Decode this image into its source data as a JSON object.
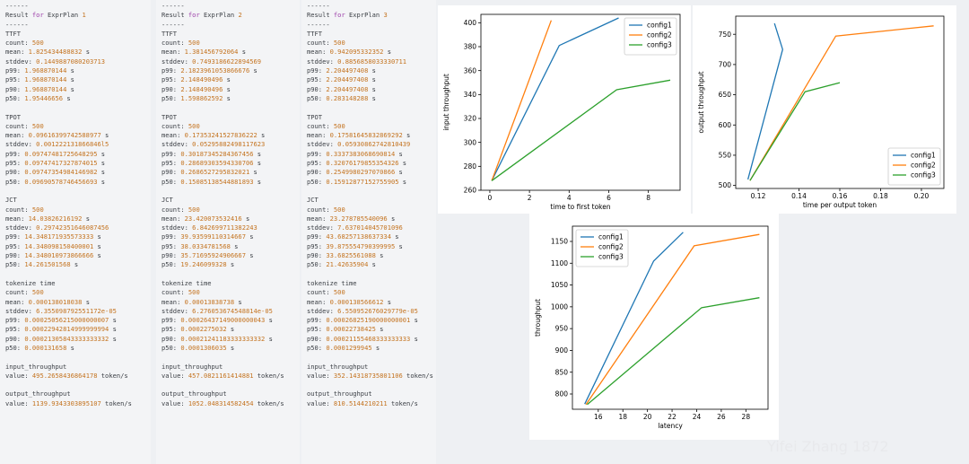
{
  "panels": [
    {
      "plan": "ExprPlan",
      "plan_num": "1",
      "lines": [
        [
          "------"
        ],
        [
          "Result ",
          {
            "k": "for"
          },
          " ExprPlan ",
          {
            "n": "1"
          }
        ],
        [
          "------"
        ],
        [
          "TTFT"
        ],
        [
          "count: ",
          {
            "n": "500"
          }
        ],
        [
          "mean: ",
          {
            "n": "1.825434488832"
          },
          " s"
        ],
        [
          "stddev: ",
          {
            "n": "0.1449887080203713"
          }
        ],
        [
          "p99: ",
          {
            "n": "1.968870144"
          },
          " s"
        ],
        [
          "p95: ",
          {
            "n": "1.968870144"
          },
          " s"
        ],
        [
          "p90: ",
          {
            "n": "1.968870144"
          },
          " s"
        ],
        [
          "p50: ",
          {
            "n": "1.95446656"
          },
          " s"
        ],
        [],
        [
          "TPOT"
        ],
        [
          "count: ",
          {
            "n": "500"
          }
        ],
        [
          "mean: ",
          {
            "n": "0.09616399742588977"
          },
          " s"
        ],
        [
          "stddev: ",
          {
            "n": "0.001222131866846l5"
          }
        ],
        [
          "p99: ",
          {
            "n": "0.09747481725648295"
          },
          " s"
        ],
        [
          "p95: ",
          {
            "n": "0.09747417327874015"
          },
          " s"
        ],
        [
          "p90: ",
          {
            "n": "0.09747354984146982"
          },
          " s"
        ],
        [
          "p50: ",
          {
            "n": "0.09690578746456693"
          },
          " s"
        ],
        [],
        [
          "JCT"
        ],
        [
          "count: ",
          {
            "n": "500"
          }
        ],
        [
          "mean: ",
          {
            "n": "14.03826216192"
          },
          " s"
        ],
        [
          "stddev: ",
          {
            "n": "0.29742351646087456"
          }
        ],
        [
          "p99: ",
          {
            "n": "14.348171935573333"
          },
          " s"
        ],
        [
          "p95: ",
          {
            "n": "14.348098150400001"
          },
          " s"
        ],
        [
          "p90: ",
          {
            "n": "14.348010973866666"
          },
          " s"
        ],
        [
          "p50: ",
          {
            "n": "14.261501568"
          },
          " s"
        ],
        [],
        [
          "tokenize time"
        ],
        [
          "count: ",
          {
            "n": "500"
          }
        ],
        [
          "mean: ",
          {
            "n": "0.000138018038"
          },
          " s"
        ],
        [
          "stddev: ",
          {
            "n": "6.355098792551172e-05"
          }
        ],
        [
          "p99: ",
          {
            "n": "0.00025056215000000007"
          },
          " s"
        ],
        [
          "p95: ",
          {
            "n": "0.00022942814999999994"
          },
          " s"
        ],
        [
          "p90: ",
          {
            "n": "0.00021305843333333332"
          },
          " s"
        ],
        [
          "p50: ",
          {
            "n": "0.000131658"
          },
          " s"
        ],
        [],
        [
          "input_throughput"
        ],
        [
          "value: ",
          {
            "n": "495.2658436864178"
          },
          " token/s"
        ],
        [],
        [
          "output_throughput"
        ],
        [
          "value: ",
          {
            "n": "1139.9343303895107"
          },
          " token/s"
        ]
      ]
    },
    {
      "lines": [
        [
          "------"
        ],
        [
          "Result ",
          {
            "k": "for"
          },
          " ExprPlan ",
          {
            "n": "2"
          }
        ],
        [
          "------"
        ],
        [
          "TTFT"
        ],
        [
          "count: ",
          {
            "n": "500"
          }
        ],
        [
          "mean: ",
          {
            "n": "1.381456792064"
          },
          " s"
        ],
        [
          "stddev: ",
          {
            "n": "0.7493186622894569"
          }
        ],
        [
          "p99: ",
          {
            "n": "2.1823961053866676"
          },
          " s"
        ],
        [
          "p95: ",
          {
            "n": "2.148490496"
          },
          " s"
        ],
        [
          "p90: ",
          {
            "n": "2.148490496"
          },
          " s"
        ],
        [
          "p50: ",
          {
            "n": "1.598862592"
          },
          " s"
        ],
        [],
        [
          "TPOT"
        ],
        [
          "count: ",
          {
            "n": "500"
          }
        ],
        [
          "mean: ",
          {
            "n": "0.17353241527836222"
          },
          " s"
        ],
        [
          "stddev: ",
          {
            "n": "0.05295882498117623"
          }
        ],
        [
          "p99: ",
          {
            "n": "0.30187345284367456"
          },
          " s"
        ],
        [
          "p95: ",
          {
            "n": "0.28689303594330706"
          },
          " s"
        ],
        [
          "p90: ",
          {
            "n": "0.2686527295832021"
          },
          " s"
        ],
        [
          "p50: ",
          {
            "n": "0.15085138544881893"
          },
          " s"
        ],
        [],
        [
          "JCT"
        ],
        [
          "count: ",
          {
            "n": "500"
          }
        ],
        [
          "mean: ",
          {
            "n": "23.420073532416"
          },
          " s"
        ],
        [
          "stddev: ",
          {
            "n": "6.842699711382243"
          }
        ],
        [
          "p99: ",
          {
            "n": "39.93599110314667"
          },
          " s"
        ],
        [
          "p95: ",
          {
            "n": "38.0334781568"
          },
          " s"
        ],
        [
          "p90: ",
          {
            "n": "35.71695924906667"
          },
          " s"
        ],
        [
          "p50: ",
          {
            "n": "19.246099328"
          },
          " s"
        ],
        [],
        [
          "tokenize time"
        ],
        [
          "count: ",
          {
            "n": "500"
          }
        ],
        [
          "mean: ",
          {
            "n": "0.00013838738"
          },
          " s"
        ],
        [
          "stddev: ",
          {
            "n": "6.276053674548814e-05"
          }
        ],
        [
          "p99: ",
          {
            "n": "0.00026437149000000043"
          },
          " s"
        ],
        [
          "p95: ",
          {
            "n": "0.0002275032"
          },
          " s"
        ],
        [
          "p90: ",
          {
            "n": "0.00021241183333333332"
          },
          " s"
        ],
        [
          "p50: ",
          {
            "n": "0.0001306035"
          },
          " s"
        ],
        [],
        [
          "input_throughput"
        ],
        [
          "value: ",
          {
            "n": "457.0821161414881"
          },
          " token/s"
        ],
        [],
        [
          "output_throughput"
        ],
        [
          "value: ",
          {
            "n": "1052.048314582454"
          },
          " token/s"
        ]
      ]
    },
    {
      "lines": [
        [
          "------"
        ],
        [
          "Result ",
          {
            "k": "for"
          },
          " ExprPlan ",
          {
            "n": "3"
          }
        ],
        [
          "------"
        ],
        [
          "TTFT"
        ],
        [
          "count: ",
          {
            "n": "500"
          }
        ],
        [
          "mean: ",
          {
            "n": "0.942095332352"
          },
          " s"
        ],
        [
          "stddev: ",
          {
            "n": "0.8856858033330711"
          }
        ],
        [
          "p99: ",
          {
            "n": "2.204497408"
          },
          " s"
        ],
        [
          "p95: ",
          {
            "n": "2.204497408"
          },
          " s"
        ],
        [
          "p90: ",
          {
            "n": "2.204497408"
          },
          " s"
        ],
        [
          "p50: ",
          {
            "n": "0.283148288"
          },
          " s"
        ],
        [],
        [
          "TPOT"
        ],
        [
          "count: ",
          {
            "n": "500"
          }
        ],
        [
          "mean: ",
          {
            "n": "0.17581645832869292"
          },
          " s"
        ],
        [
          "stddev: ",
          {
            "n": "0.05930862742810439"
          }
        ],
        [
          "p99: ",
          {
            "n": "0.3337383068690814"
          },
          " s"
        ],
        [
          "p95: ",
          {
            "n": "0.32076179855354326"
          },
          " s"
        ],
        [
          "p90: ",
          {
            "n": "0.2549980297070866"
          },
          " s"
        ],
        [
          "p50: ",
          {
            "n": "0.15912877152755905"
          },
          " s"
        ],
        [],
        [
          "JCT"
        ],
        [
          "count: ",
          {
            "n": "500"
          }
        ],
        [
          "mean: ",
          {
            "n": "23.278785540096"
          },
          " s"
        ],
        [
          "stddev: ",
          {
            "n": "7.637014045701096"
          }
        ],
        [
          "p99: ",
          {
            "n": "43.68257138637334"
          },
          " s"
        ],
        [
          "p95: ",
          {
            "n": "39.875554790399995"
          },
          " s"
        ],
        [
          "p90: ",
          {
            "n": "33.6825561088"
          },
          " s"
        ],
        [
          "p50: ",
          {
            "n": "21.42635904"
          },
          " s"
        ],
        [],
        [
          "tokenize time"
        ],
        [
          "count: ",
          {
            "n": "500"
          }
        ],
        [
          "mean: ",
          {
            "n": "0.000138566612"
          },
          " s"
        ],
        [
          "stddev: ",
          {
            "n": "6.550952676029779e-05"
          }
        ],
        [
          "p99: ",
          {
            "n": "0.00026825190000000001"
          },
          " s"
        ],
        [
          "p95: ",
          {
            "n": "0.00022738425"
          },
          " s"
        ],
        [
          "p90: ",
          {
            "n": "0.00021155468333333333"
          },
          " s"
        ],
        [
          "p50: ",
          {
            "n": "0.0001299945"
          },
          " s"
        ],
        [],
        [
          "input_throughput"
        ],
        [
          "value: ",
          {
            "n": "352.14318735801106"
          },
          " token/s"
        ],
        [],
        [
          "output_throughput"
        ],
        [
          "value: ",
          {
            "n": "810.5144210211"
          },
          " token/s"
        ]
      ]
    }
  ],
  "colors": {
    "config1": "#1f77b4",
    "config2": "#ff7f0e",
    "config3": "#2ca02c",
    "number": "#c4731f",
    "keyword": "#9c3ea8"
  },
  "watermark": "Yifei Zhang 1872",
  "chart_data": [
    {
      "type": "line",
      "title": "",
      "xlabel": "time to first token",
      "ylabel": "input throughput",
      "xlim": [
        -0.45,
        9.6
      ],
      "ylim": [
        260,
        407
      ],
      "xticks": [
        0,
        2,
        4,
        6,
        8
      ],
      "yticks": [
        260,
        280,
        300,
        320,
        340,
        360,
        380,
        400
      ],
      "legend": "top-right",
      "series": [
        {
          "name": "config1",
          "points": [
            [
              0.1,
              268
            ],
            [
              3.5,
              381
            ],
            [
              6.5,
              404
            ]
          ]
        },
        {
          "name": "config2",
          "points": [
            [
              0.1,
              268
            ],
            [
              3.1,
              402
            ]
          ]
        },
        {
          "name": "config3",
          "points": [
            [
              0.1,
              268
            ],
            [
              6.4,
              344
            ],
            [
              9.1,
              352
            ]
          ]
        }
      ]
    },
    {
      "type": "line",
      "title": "",
      "xlabel": "time per output token",
      "ylabel": "output throughput",
      "xlim": [
        0.109,
        0.211
      ],
      "ylim": [
        495,
        780
      ],
      "xticks": [
        0.12,
        0.14,
        0.16,
        0.18,
        0.2
      ],
      "xtick_labels": [
        "0.12",
        "0.14",
        "0.16",
        "0.18",
        "0.20"
      ],
      "yticks": [
        500,
        550,
        600,
        650,
        700,
        750
      ],
      "legend": "bottom-right",
      "series": [
        {
          "name": "config1",
          "points": [
            [
              0.115,
              510
            ],
            [
              0.132,
              725
            ],
            [
              0.128,
              768
            ]
          ]
        },
        {
          "name": "config2",
          "points": [
            [
              0.116,
              508
            ],
            [
              0.158,
              747
            ],
            [
              0.206,
              764
            ]
          ]
        },
        {
          "name": "config3",
          "points": [
            [
              0.116,
              508
            ],
            [
              0.143,
              655
            ],
            [
              0.16,
              670
            ]
          ]
        }
      ]
    },
    {
      "type": "line",
      "title": "",
      "xlabel": "latency",
      "ylabel": "throughput",
      "xlim": [
        13.9,
        29.8
      ],
      "ylim": [
        765,
        1185
      ],
      "xticks": [
        16,
        18,
        20,
        22,
        24,
        26,
        28
      ],
      "yticks": [
        800,
        850,
        900,
        950,
        1000,
        1050,
        1100,
        1150
      ],
      "legend": "top-left",
      "series": [
        {
          "name": "config1",
          "points": [
            [
              14.9,
              777
            ],
            [
              20.5,
              1105
            ],
            [
              22.9,
              1171
            ]
          ]
        },
        {
          "name": "config2",
          "points": [
            [
              15.0,
              776
            ],
            [
              23.8,
              1140
            ],
            [
              29.1,
              1166
            ]
          ]
        },
        {
          "name": "config3",
          "points": [
            [
              15.1,
              776
            ],
            [
              24.4,
              998
            ],
            [
              29.1,
              1021
            ]
          ]
        }
      ]
    }
  ]
}
